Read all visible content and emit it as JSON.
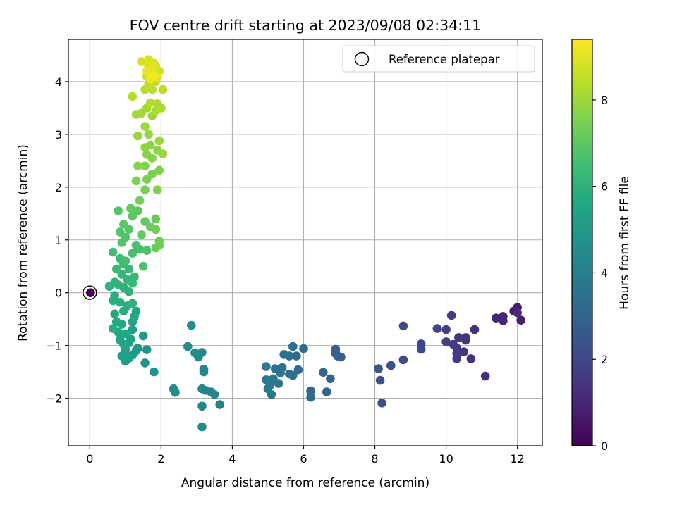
{
  "chart_data": {
    "type": "scatter",
    "title": "FOV centre drift starting at 2023/09/08 02:34:11",
    "xlabel": "Angular distance from reference (arcmin)",
    "ylabel": "Rotation from reference (arcmin)",
    "xlim": [
      -0.6,
      12.7
    ],
    "ylim": [
      -2.9,
      4.8
    ],
    "xticks": [
      0,
      2,
      4,
      6,
      8,
      10,
      12
    ],
    "yticks": [
      -2,
      -1,
      0,
      1,
      2,
      3,
      4
    ],
    "xtick_labels": [
      "0",
      "2",
      "4",
      "6",
      "8",
      "10",
      "12"
    ],
    "ytick_labels": [
      "−2",
      "−1",
      "0",
      "1",
      "2",
      "3",
      "4"
    ],
    "grid": true,
    "legend": {
      "placement": "top-right",
      "entries": [
        "Reference platepar"
      ]
    },
    "reference_point": {
      "x": 0,
      "y": 0,
      "name": "Reference platepar"
    },
    "colorbar": {
      "label": "Hours from first FF file",
      "colormap": "viridis",
      "range": [
        0,
        9.4
      ],
      "ticks": [
        0,
        2,
        4,
        6,
        8
      ],
      "tick_labels": [
        "0",
        "2",
        "4",
        "6",
        "8"
      ]
    },
    "points": [
      [
        0.02,
        0.0,
        0.0
      ],
      [
        12.0,
        -0.28,
        0.6
      ],
      [
        11.9,
        -0.35,
        0.7
      ],
      [
        12.1,
        -0.52,
        0.8
      ],
      [
        11.6,
        -0.45,
        0.9
      ],
      [
        11.6,
        -0.53,
        1.0
      ],
      [
        11.4,
        -0.48,
        1.0
      ],
      [
        12.0,
        -0.38,
        1.1
      ],
      [
        11.1,
        -1.58,
        1.2
      ],
      [
        10.8,
        -0.7,
        1.3
      ],
      [
        10.7,
        -1.25,
        1.3
      ],
      [
        10.55,
        -0.85,
        1.4
      ],
      [
        10.55,
        -0.9,
        1.4
      ],
      [
        10.5,
        -1.12,
        1.5
      ],
      [
        10.35,
        -0.85,
        1.5
      ],
      [
        10.3,
        -1.05,
        1.5
      ],
      [
        10.3,
        -1.25,
        1.6
      ],
      [
        10.3,
        -1.15,
        1.6
      ],
      [
        10.2,
        -0.98,
        1.7
      ],
      [
        10.15,
        -0.43,
        1.7
      ],
      [
        10.0,
        -0.7,
        1.8
      ],
      [
        10.0,
        -0.93,
        1.8
      ],
      [
        9.75,
        -0.68,
        1.9
      ],
      [
        9.3,
        -0.97,
        2.0
      ],
      [
        9.3,
        -1.07,
        2.0
      ],
      [
        8.8,
        -0.63,
        2.1
      ],
      [
        8.8,
        -1.27,
        2.2
      ],
      [
        8.45,
        -1.38,
        2.3
      ],
      [
        8.2,
        -2.09,
        2.4
      ],
      [
        8.15,
        -1.66,
        2.4
      ],
      [
        8.1,
        -1.44,
        2.5
      ],
      [
        7.05,
        -1.22,
        2.8
      ],
      [
        6.95,
        -1.2,
        2.8
      ],
      [
        6.9,
        -1.15,
        2.9
      ],
      [
        6.9,
        -1.07,
        2.9
      ],
      [
        6.75,
        -1.63,
        3.0
      ],
      [
        6.65,
        -1.88,
        3.0
      ],
      [
        6.55,
        -1.51,
        3.1
      ],
      [
        6.2,
        -1.86,
        3.1
      ],
      [
        6.2,
        -1.98,
        3.2
      ],
      [
        6.0,
        -1.06,
        3.2
      ],
      [
        5.85,
        -1.46,
        3.3
      ],
      [
        5.8,
        -1.2,
        3.3
      ],
      [
        5.7,
        -1.02,
        3.4
      ],
      [
        5.7,
        -1.57,
        3.4
      ],
      [
        5.6,
        -1.54,
        3.4
      ],
      [
        5.6,
        -1.2,
        3.5
      ],
      [
        5.45,
        -1.17,
        3.5
      ],
      [
        5.4,
        -1.42,
        3.5
      ],
      [
        5.35,
        -1.52,
        3.6
      ],
      [
        5.3,
        -1.72,
        3.6
      ],
      [
        5.2,
        -1.44,
        3.6
      ],
      [
        5.15,
        -1.63,
        3.7
      ],
      [
        5.1,
        -1.93,
        3.7
      ],
      [
        5.05,
        -1.76,
        3.7
      ],
      [
        4.95,
        -1.4,
        3.8
      ],
      [
        4.95,
        -1.65,
        3.8
      ],
      [
        5.0,
        -1.82,
        3.8
      ],
      [
        3.65,
        -2.12,
        4.1
      ],
      [
        3.5,
        -1.93,
        4.2
      ],
      [
        3.4,
        -1.88,
        4.2
      ],
      [
        3.25,
        -1.85,
        4.2
      ],
      [
        3.2,
        -1.45,
        4.3
      ],
      [
        3.2,
        -1.5,
        4.3
      ],
      [
        3.15,
        -1.82,
        4.3
      ],
      [
        3.15,
        -2.15,
        4.3
      ],
      [
        3.15,
        -2.54,
        4.4
      ],
      [
        3.15,
        -1.13,
        4.4
      ],
      [
        3.05,
        -1.22,
        4.4
      ],
      [
        2.95,
        -1.14,
        4.5
      ],
      [
        2.85,
        -0.62,
        4.5
      ],
      [
        2.75,
        -1.02,
        4.5
      ],
      [
        2.35,
        -1.82,
        4.6
      ],
      [
        2.4,
        -1.89,
        4.6
      ],
      [
        1.8,
        -1.5,
        4.7
      ],
      [
        1.6,
        -1.08,
        4.8
      ],
      [
        1.55,
        -1.33,
        4.8
      ],
      [
        1.5,
        -0.82,
        4.9
      ],
      [
        1.35,
        -1.05,
        5.0
      ],
      [
        1.3,
        -1.1,
        5.0
      ],
      [
        1.2,
        -1.18,
        5.1
      ],
      [
        1.2,
        -0.7,
        5.1
      ],
      [
        1.1,
        -1.24,
        5.2
      ],
      [
        1.0,
        -1.3,
        5.2
      ],
      [
        1.05,
        -1.2,
        5.3
      ],
      [
        0.9,
        -1.2,
        5.3
      ],
      [
        1.15,
        -0.88,
        5.3
      ],
      [
        1.2,
        -0.55,
        5.4
      ],
      [
        1.1,
        -0.95,
        5.4
      ],
      [
        1.0,
        -1.08,
        5.4
      ],
      [
        0.95,
        -0.98,
        5.5
      ],
      [
        0.85,
        -0.9,
        5.5
      ],
      [
        0.8,
        -0.75,
        5.5
      ],
      [
        1.25,
        -0.45,
        5.6
      ],
      [
        1.3,
        -0.35,
        5.6
      ],
      [
        1.0,
        -0.78,
        5.6
      ],
      [
        0.9,
        -0.6,
        5.7
      ],
      [
        0.75,
        -0.55,
        5.7
      ],
      [
        0.7,
        -0.4,
        5.7
      ],
      [
        0.65,
        -0.68,
        5.8
      ],
      [
        1.05,
        -0.25,
        5.8
      ],
      [
        0.95,
        -0.35,
        5.8
      ],
      [
        0.85,
        -0.18,
        5.9
      ],
      [
        0.65,
        -0.15,
        5.9
      ],
      [
        0.7,
        -0.05,
        5.9
      ],
      [
        1.2,
        -0.2,
        6.0
      ],
      [
        1.1,
        0.02,
        6.0
      ],
      [
        0.95,
        0.1,
        6.0
      ],
      [
        0.8,
        0.15,
        6.1
      ],
      [
        0.7,
        0.2,
        6.1
      ],
      [
        0.55,
        0.12,
        6.1
      ],
      [
        1.2,
        0.18,
        6.2
      ],
      [
        1.05,
        0.25,
        6.2
      ],
      [
        0.9,
        0.35,
        6.2
      ],
      [
        0.75,
        0.45,
        6.3
      ],
      [
        1.25,
        0.3,
        6.3
      ],
      [
        1.1,
        0.45,
        6.3
      ],
      [
        0.95,
        0.55,
        6.4
      ],
      [
        0.85,
        0.65,
        6.4
      ],
      [
        0.65,
        0.77,
        6.5
      ],
      [
        1.0,
        0.6,
        6.5
      ],
      [
        1.2,
        0.75,
        6.6
      ],
      [
        1.4,
        0.82,
        6.6
      ],
      [
        1.3,
        0.9,
        6.7
      ],
      [
        1.5,
        0.5,
        6.7
      ],
      [
        1.6,
        0.8,
        6.7
      ],
      [
        0.9,
        0.95,
        6.8
      ],
      [
        0.85,
        1.15,
        6.8
      ],
      [
        1.0,
        1.05,
        6.8
      ],
      [
        1.1,
        1.2,
        6.9
      ],
      [
        0.8,
        1.55,
        6.9
      ],
      [
        0.95,
        1.3,
        7.0
      ],
      [
        1.2,
        1.45,
        7.0
      ],
      [
        1.35,
        1.55,
        7.0
      ],
      [
        1.15,
        1.6,
        7.1
      ],
      [
        1.45,
        1.1,
        7.1
      ],
      [
        1.55,
        1.35,
        7.1
      ],
      [
        1.7,
        1.25,
        7.2
      ],
      [
        1.85,
        1.4,
        7.2
      ],
      [
        1.85,
        0.85,
        7.2
      ],
      [
        1.95,
        0.9,
        7.3
      ],
      [
        1.95,
        0.98,
        7.3
      ],
      [
        1.85,
        1.2,
        7.3
      ],
      [
        1.4,
        1.75,
        7.4
      ],
      [
        1.55,
        1.95,
        7.4
      ],
      [
        1.3,
        2.12,
        7.5
      ],
      [
        1.6,
        2.15,
        7.5
      ],
      [
        1.75,
        2.25,
        7.5
      ],
      [
        1.9,
        1.95,
        7.6
      ],
      [
        1.95,
        2.32,
        7.6
      ],
      [
        1.55,
        2.4,
        7.6
      ],
      [
        1.35,
        2.4,
        7.7
      ],
      [
        1.75,
        2.55,
        7.7
      ],
      [
        1.6,
        2.62,
        7.7
      ],
      [
        1.9,
        2.7,
        7.8
      ],
      [
        1.55,
        2.75,
        7.8
      ],
      [
        1.7,
        2.8,
        7.8
      ],
      [
        2.05,
        2.63,
        7.9
      ],
      [
        1.35,
        2.97,
        7.9
      ],
      [
        1.65,
        3.0,
        7.9
      ],
      [
        1.55,
        3.15,
        8.0
      ],
      [
        1.95,
        2.88,
        8.0
      ],
      [
        1.75,
        3.35,
        8.0
      ],
      [
        1.3,
        3.38,
        8.1
      ],
      [
        1.45,
        3.4,
        8.1
      ],
      [
        1.6,
        3.5,
        8.1
      ],
      [
        1.85,
        3.45,
        8.2
      ],
      [
        2.0,
        3.5,
        8.2
      ],
      [
        1.9,
        3.58,
        8.2
      ],
      [
        1.7,
        3.6,
        8.3
      ],
      [
        1.2,
        3.72,
        8.3
      ],
      [
        1.55,
        3.85,
        8.4
      ],
      [
        1.75,
        3.85,
        8.4
      ],
      [
        2.05,
        3.85,
        8.4
      ],
      [
        1.65,
        3.95,
        8.5
      ],
      [
        1.85,
        4.0,
        8.5
      ],
      [
        1.6,
        4.1,
        8.6
      ],
      [
        1.75,
        4.15,
        8.6
      ],
      [
        1.95,
        4.2,
        8.7
      ],
      [
        1.65,
        4.28,
        8.7
      ],
      [
        1.85,
        4.3,
        8.8
      ],
      [
        1.45,
        4.38,
        8.8
      ],
      [
        1.65,
        4.42,
        8.9
      ],
      [
        1.8,
        4.35,
        8.9
      ],
      [
        1.75,
        4.25,
        9.0
      ],
      [
        1.9,
        4.08,
        9.0
      ],
      [
        1.6,
        4.2,
        9.1
      ],
      [
        1.7,
        4.05,
        9.2
      ],
      [
        1.8,
        4.12,
        9.3
      ]
    ]
  }
}
